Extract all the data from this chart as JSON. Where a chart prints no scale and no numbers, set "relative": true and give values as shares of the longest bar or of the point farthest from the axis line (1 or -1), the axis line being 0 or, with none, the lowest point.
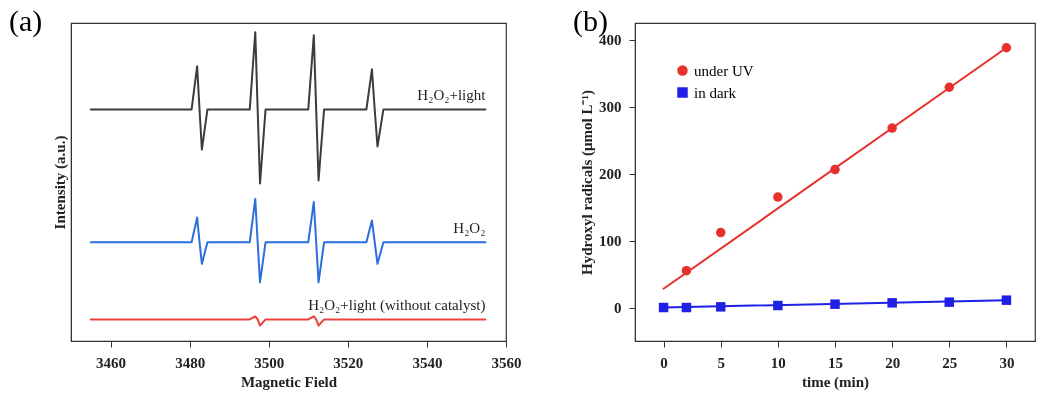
{
  "chart_data": [
    {
      "type": "line",
      "title": "(a)",
      "xlabel": "Magnetic Field",
      "ylabel": "Intensity (a.u.)",
      "relative": true,
      "tick_labels": "x",
      "grid": false,
      "xlim": [
        3450,
        3560
      ],
      "xticks": [
        3460,
        3480,
        3500,
        3520,
        3540,
        3560
      ],
      "x": [
        3455,
        3480.5,
        3481.9,
        3482.5,
        3483.1,
        3484.5,
        3495.2,
        3496.6,
        3497.2,
        3497.8,
        3499.2,
        3510,
        3511.4,
        3512,
        3512.6,
        3514,
        3524.7,
        3526.1,
        3526.8,
        3527.5,
        3529,
        3554.8
      ],
      "series": [
        {
          "name": "H₂O₂+light",
          "color": "#3c3c3c",
          "values": [
            0.75,
            0.75,
            0.89,
            0.75,
            0.62,
            0.75,
            0.75,
            1.0,
            0.75,
            0.51,
            0.75,
            0.75,
            0.99,
            0.75,
            0.52,
            0.75,
            0.75,
            0.88,
            0.75,
            0.63,
            0.75,
            0.75
          ]
        },
        {
          "name": "H₂O₂",
          "color": "#2a6fdb",
          "values": [
            0.32,
            0.32,
            0.4,
            0.32,
            0.25,
            0.32,
            0.32,
            0.46,
            0.32,
            0.19,
            0.32,
            0.32,
            0.45,
            0.32,
            0.19,
            0.32,
            0.32,
            0.39,
            0.32,
            0.25,
            0.32,
            0.32
          ]
        },
        {
          "name": "H₂O₂+light (without catalyst)",
          "color": "#e8423f",
          "values": [
            0.07,
            0.07,
            0.07,
            0.07,
            0.07,
            0.07,
            0.07,
            0.08,
            0.07,
            0.05,
            0.07,
            0.07,
            0.08,
            0.07,
            0.05,
            0.07,
            0.07,
            0.07,
            0.07,
            0.07,
            0.07,
            0.07
          ]
        }
      ]
    },
    {
      "type": "scatter",
      "title": "(b)",
      "xlabel": "time (min)",
      "ylabel": "Hydroxyl radicals (μmol L⁻¹)",
      "grid": false,
      "legend": "top left",
      "xlim": [
        -2.5,
        32.5
      ],
      "ylim": [
        -50,
        425
      ],
      "xticks": [
        0,
        5,
        10,
        15,
        20,
        25,
        30
      ],
      "yticks": [
        0,
        100,
        200,
        300,
        400
      ],
      "series": [
        {
          "type": "line",
          "color": "#e8312c",
          "x": [
            0,
            30
          ],
          "values": [
            28,
            388
          ]
        },
        {
          "type": "line",
          "color": "#1f1fe6",
          "x": [
            0,
            30
          ],
          "values": [
            0,
            11
          ]
        },
        {
          "name": "under UV",
          "color": "#e8312c",
          "marker": "circle",
          "x": [
            2,
            5,
            10,
            15,
            20,
            25,
            30
          ],
          "values": [
            55,
            112,
            165,
            206,
            268,
            329,
            388
          ]
        },
        {
          "name": "in dark",
          "color": "#1f1fe6",
          "marker": "square",
          "x": [
            0,
            2,
            5,
            10,
            15,
            20,
            25,
            30
          ],
          "values": [
            0,
            0,
            1,
            3,
            5,
            7,
            8,
            11
          ]
        }
      ]
    }
  ]
}
